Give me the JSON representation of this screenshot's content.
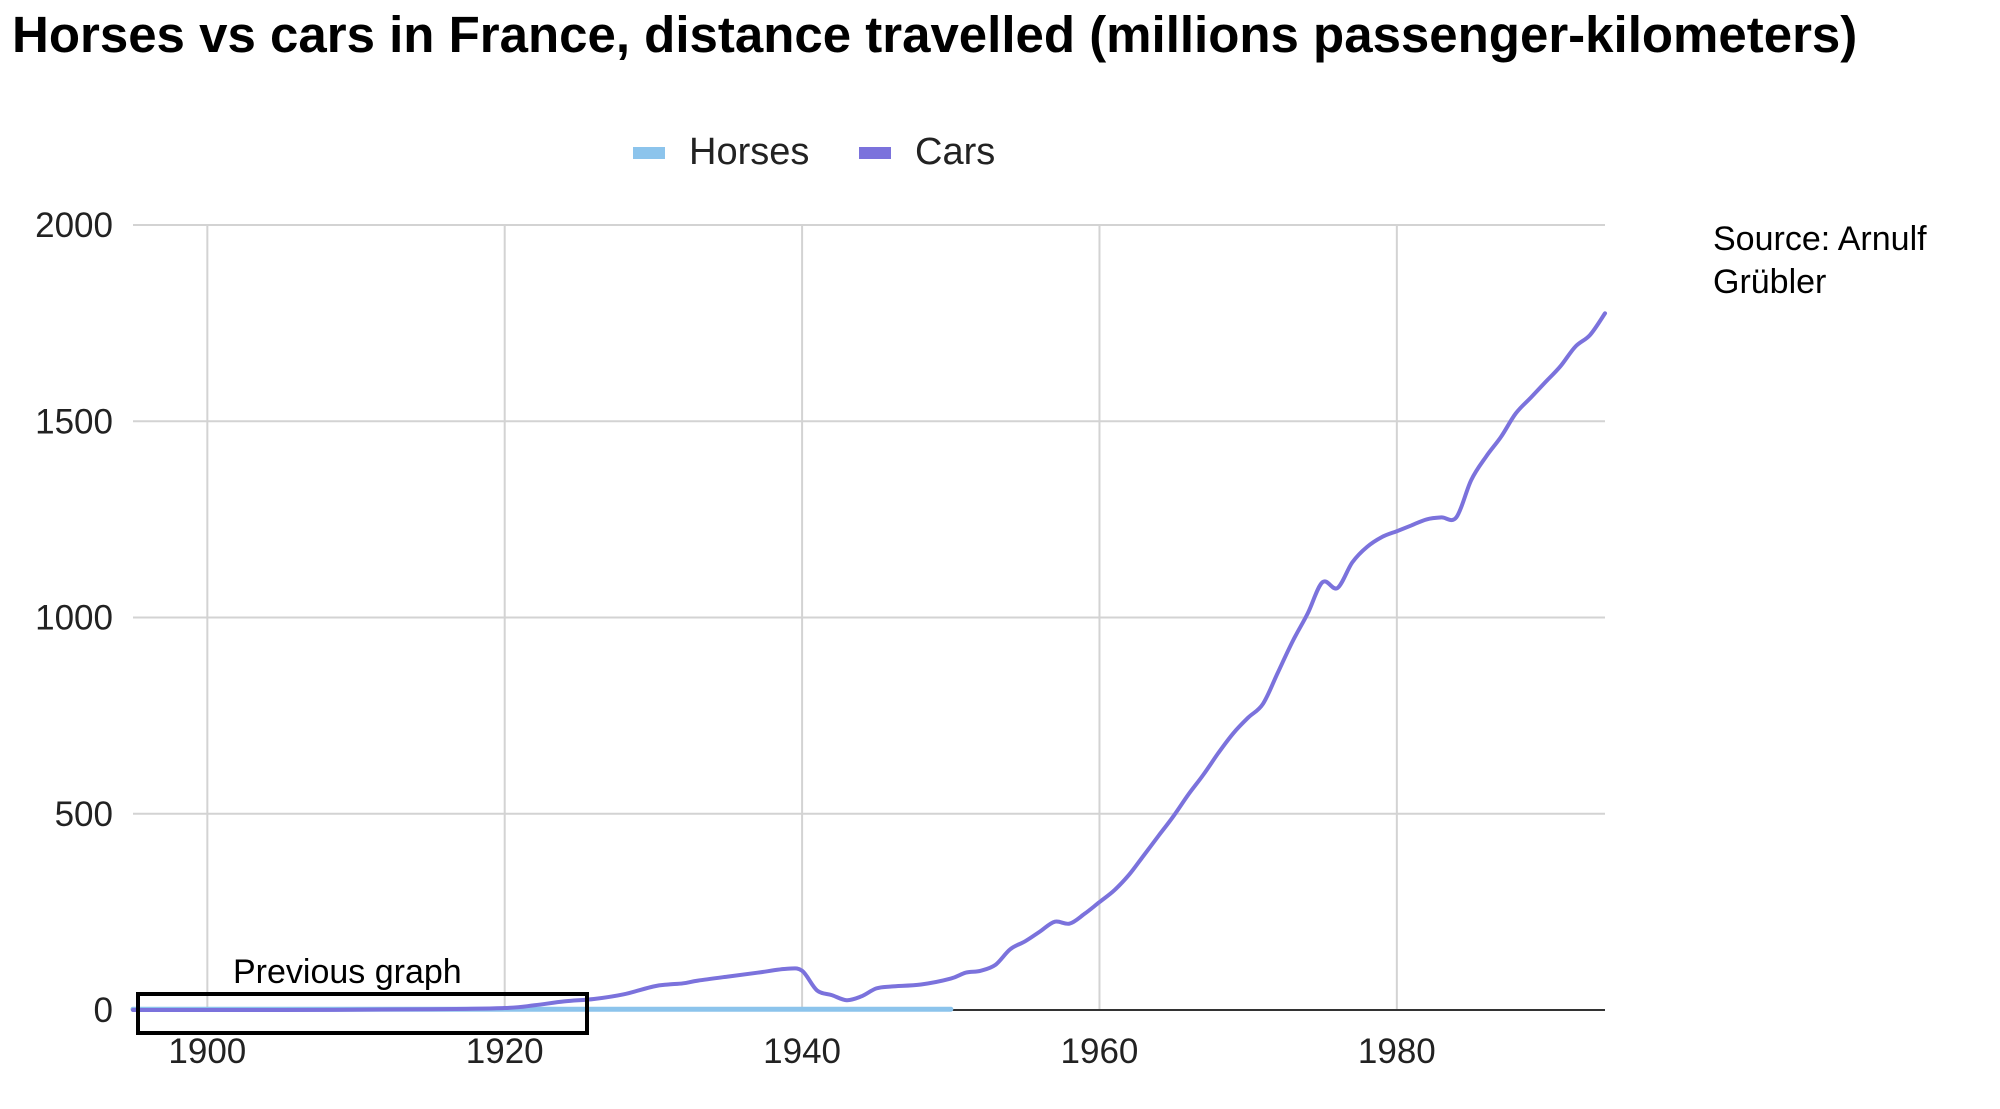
{
  "chart_data": {
    "type": "line",
    "title": "Horses vs cars in France, distance travelled (millions passenger-kilometers)",
    "source": [
      "Source: Arnulf",
      "Grübler"
    ],
    "annotation": "Previous graph",
    "xticks": [
      1900,
      1920,
      1940,
      1960,
      1980
    ],
    "yticks": [
      0,
      500,
      1000,
      1500,
      2000
    ],
    "xlim": [
      1895,
      1994
    ],
    "ylim": [
      0,
      2000
    ],
    "grid": true,
    "legend_position": "top",
    "series": [
      {
        "name": "Horses",
        "color": "#8cc4ec",
        "x": [
          1895,
          1900,
          1910,
          1920,
          1930,
          1940,
          1950
        ],
        "y": [
          2,
          2,
          2,
          2,
          2,
          2,
          2
        ]
      },
      {
        "name": "Cars",
        "color": "#7b72dc",
        "x": [
          1895,
          1905,
          1915,
          1920,
          1922,
          1924,
          1926,
          1928,
          1930,
          1931,
          1932,
          1933,
          1935,
          1937,
          1939,
          1940,
          1941,
          1942,
          1943,
          1944,
          1945,
          1946,
          1948,
          1950,
          1951,
          1952,
          1953,
          1954,
          1955,
          1956,
          1957,
          1958,
          1959,
          1960,
          1961,
          1962,
          1963,
          1964,
          1965,
          1966,
          1967,
          1968,
          1969,
          1970,
          1971,
          1972,
          1973,
          1974,
          1975,
          1976,
          1977,
          1978,
          1979,
          1980,
          1981,
          1982,
          1983,
          1984,
          1985,
          1986,
          1987,
          1988,
          1989,
          1990,
          1991,
          1992,
          1993,
          1994
        ],
        "y": [
          0,
          0,
          2,
          5,
          12,
          22,
          28,
          40,
          60,
          65,
          68,
          75,
          85,
          95,
          105,
          100,
          50,
          38,
          25,
          35,
          55,
          60,
          65,
          80,
          95,
          100,
          115,
          155,
          175,
          200,
          225,
          220,
          245,
          275,
          305,
          345,
          395,
          445,
          495,
          550,
          600,
          655,
          705,
          745,
          780,
          860,
          940,
          1010,
          1090,
          1075,
          1140,
          1180,
          1205,
          1220,
          1235,
          1250,
          1255,
          1255,
          1350,
          1410,
          1460,
          1520,
          1560,
          1600,
          1640,
          1690,
          1720,
          1775
        ]
      }
    ]
  }
}
